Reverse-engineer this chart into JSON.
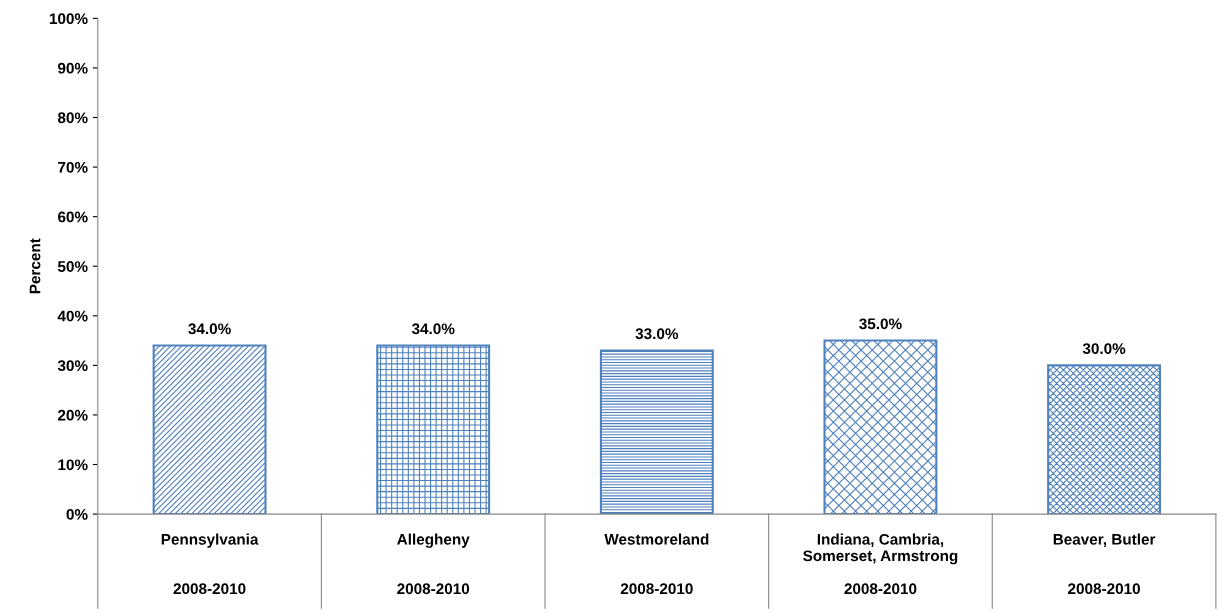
{
  "chart_data": {
    "type": "bar",
    "ylabel": "Percent",
    "categories": [
      "Pennsylvania\n\n\n2008-2010",
      "Allegheny\n\n\n2008-2010",
      "Westmoreland\n\n\n2008-2010",
      "Indiana, Cambria,\nSomerset, Armstrong\n\n2008-2010",
      "Beaver, Butler\n\n\n2008-2010"
    ],
    "values": [
      34.0,
      34.0,
      33.0,
      35.0,
      30.0
    ],
    "value_labels": [
      "34.0%",
      "34.0%",
      "33.0%",
      "35.0%",
      "30.0%"
    ],
    "color": "#4f81bd",
    "ylim": [
      0,
      100
    ],
    "yticks": [
      {
        "value": 0,
        "label": "0%"
      },
      {
        "value": 10,
        "label": "10%"
      },
      {
        "value": 20,
        "label": "20%"
      },
      {
        "value": 30,
        "label": "30%"
      },
      {
        "value": 40,
        "label": "40%"
      },
      {
        "value": 50,
        "label": "50%"
      },
      {
        "value": 60,
        "label": "60%"
      },
      {
        "value": 70,
        "label": "70%"
      },
      {
        "value": 80,
        "label": "80%"
      },
      {
        "value": 90,
        "label": "90%"
      },
      {
        "value": 100,
        "label": "100%"
      }
    ],
    "grid": false,
    "legend": false
  }
}
